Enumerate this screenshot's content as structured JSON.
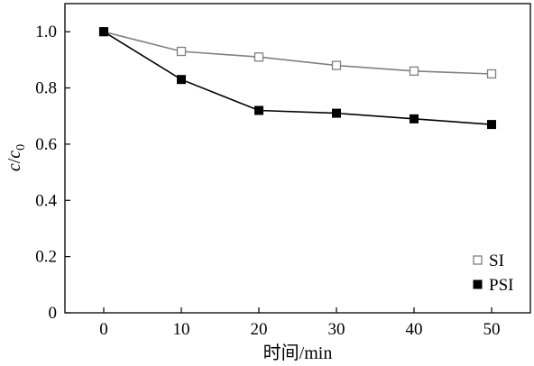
{
  "chart_data": {
    "type": "line",
    "x": [
      0,
      10,
      20,
      30,
      40,
      50
    ],
    "series": [
      {
        "name": "SI",
        "values": [
          1.0,
          0.93,
          0.91,
          0.88,
          0.86,
          0.85
        ],
        "color": "#808080",
        "marker": "open-square"
      },
      {
        "name": "PSI",
        "values": [
          1.0,
          0.83,
          0.72,
          0.71,
          0.69,
          0.67
        ],
        "color": "#000000",
        "marker": "filled-square"
      }
    ],
    "xticks": [
      "0",
      "10",
      "20",
      "30",
      "40",
      "50"
    ],
    "yticks": [
      "0",
      "0.2",
      "0.4",
      "0.6",
      "0.8",
      "1.0"
    ],
    "xlim": [
      -5,
      55
    ],
    "ylim": [
      0,
      1.1
    ],
    "xlabel": "时间/min",
    "ylabel_main": "c",
    "ylabel_sep": "/",
    "ylabel_base": "c",
    "ylabel_sub": "0",
    "legend_position": "bottom-right",
    "grid": false
  }
}
